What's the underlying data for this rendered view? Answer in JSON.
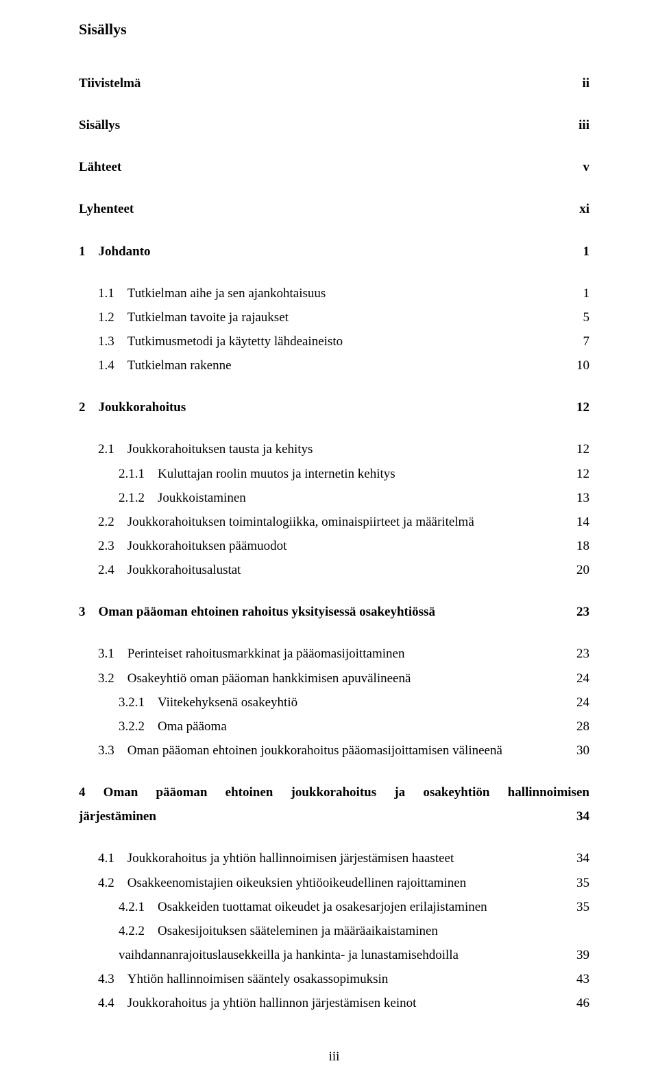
{
  "title": "Sisällys",
  "footer": "iii",
  "toc": [
    {
      "label": "Tiivistelmä",
      "page": "ii",
      "bold": true,
      "indent": 0,
      "gap": true
    },
    {
      "label": "Sisällys",
      "page": "iii",
      "bold": true,
      "indent": 0,
      "gap": true
    },
    {
      "label": "Lähteet",
      "page": "v",
      "bold": true,
      "indent": 0,
      "gap": true
    },
    {
      "label": "Lyhenteet",
      "page": "xi",
      "bold": true,
      "indent": 0,
      "gap": true
    },
    {
      "label": "1 Johdanto",
      "page": "1",
      "bold": true,
      "indent": 0,
      "gap": true
    },
    {
      "label": "1.1 Tutkielman aihe ja sen ajankohtaisuus",
      "page": "1",
      "bold": false,
      "indent": 1,
      "gap": true
    },
    {
      "label": "1.2 Tutkielman tavoite ja rajaukset",
      "page": "5",
      "bold": false,
      "indent": 1
    },
    {
      "label": "1.3 Tutkimusmetodi ja käytetty lähdeaineisto",
      "page": "7",
      "bold": false,
      "indent": 1
    },
    {
      "label": "1.4 Tutkielman rakenne",
      "page": "10",
      "bold": false,
      "indent": 1
    },
    {
      "label": "2 Joukkorahoitus",
      "page": "12",
      "bold": true,
      "indent": 0,
      "gap": true
    },
    {
      "label": "2.1 Joukkorahoituksen tausta ja kehitys",
      "page": "12",
      "bold": false,
      "indent": 1,
      "gap": true
    },
    {
      "label": "2.1.1 Kuluttajan roolin muutos ja internetin kehitys",
      "page": "12",
      "bold": false,
      "indent": 2
    },
    {
      "label": "2.1.2 Joukkoistaminen",
      "page": "13",
      "bold": false,
      "indent": 2
    },
    {
      "label": "2.2 Joukkorahoituksen toimintalogiikka, ominaispiirteet ja määritelmä",
      "page": "14",
      "bold": false,
      "indent": 1
    },
    {
      "label": "2.3 Joukkorahoituksen päämuodot",
      "page": "18",
      "bold": false,
      "indent": 1
    },
    {
      "label": "2.4 Joukkorahoitusalustat",
      "page": "20",
      "bold": false,
      "indent": 1
    },
    {
      "label": "3 Oman pääoman ehtoinen rahoitus yksityisessä osakeyhtiössä",
      "page": "23",
      "bold": true,
      "indent": 0,
      "gap": true
    },
    {
      "label": "3.1 Perinteiset rahoitusmarkkinat ja pääomasijoittaminen",
      "page": "23",
      "bold": false,
      "indent": 1,
      "gap": true
    },
    {
      "label": "3.2 Osakeyhtiö oman pääoman hankkimisen apuvälineenä",
      "page": "24",
      "bold": false,
      "indent": 1
    },
    {
      "label": "3.2.1 Viitekehyksenä osakeyhtiö",
      "page": "24",
      "bold": false,
      "indent": 2
    },
    {
      "label": "3.2.2 Oma pääoma",
      "page": "28",
      "bold": false,
      "indent": 2
    },
    {
      "label": "3.3 Oman pääoman ehtoinen joukkorahoitus pääomasijoittamisen välineenä",
      "page": "30",
      "bold": false,
      "indent": 1
    }
  ],
  "section4_head": {
    "parts": [
      "4",
      "Oman",
      "pääoman",
      "ehtoinen",
      "joukkorahoitus",
      "ja",
      "osakeyhtiön",
      "hallinnoimisen"
    ],
    "line2_label": "järjestäminen",
    "page": "34"
  },
  "toc2": [
    {
      "label": "4.1 Joukkorahoitus ja yhtiön hallinnoimisen järjestämisen haasteet",
      "page": "34",
      "bold": false,
      "indent": 1,
      "gap": true
    },
    {
      "label": "4.2 Osakkeenomistajien oikeuksien yhtiöoikeudellinen rajoittaminen",
      "page": "35",
      "bold": false,
      "indent": 1
    },
    {
      "label": "4.2.1 Osakkeiden tuottamat oikeudet ja osakesarjojen erilajistaminen",
      "page": "35",
      "bold": false,
      "indent": 2
    }
  ],
  "multiline422": {
    "l1": "4.2.2 Osakesijoituksen sääteleminen ja määräaikaistaminen",
    "l2_label": "vaihdannanrajoituslausekkeilla ja hankinta- ja lunastamisehdoilla",
    "page": "39"
  },
  "toc3": [
    {
      "label": "4.3 Yhtiön hallinnoimisen sääntely osakassopimuksin",
      "page": "43",
      "bold": false,
      "indent": 1
    },
    {
      "label": "4.4 Joukkorahoitus ja yhtiön hallinnon järjestämisen keinot",
      "page": "46",
      "bold": false,
      "indent": 1
    }
  ]
}
